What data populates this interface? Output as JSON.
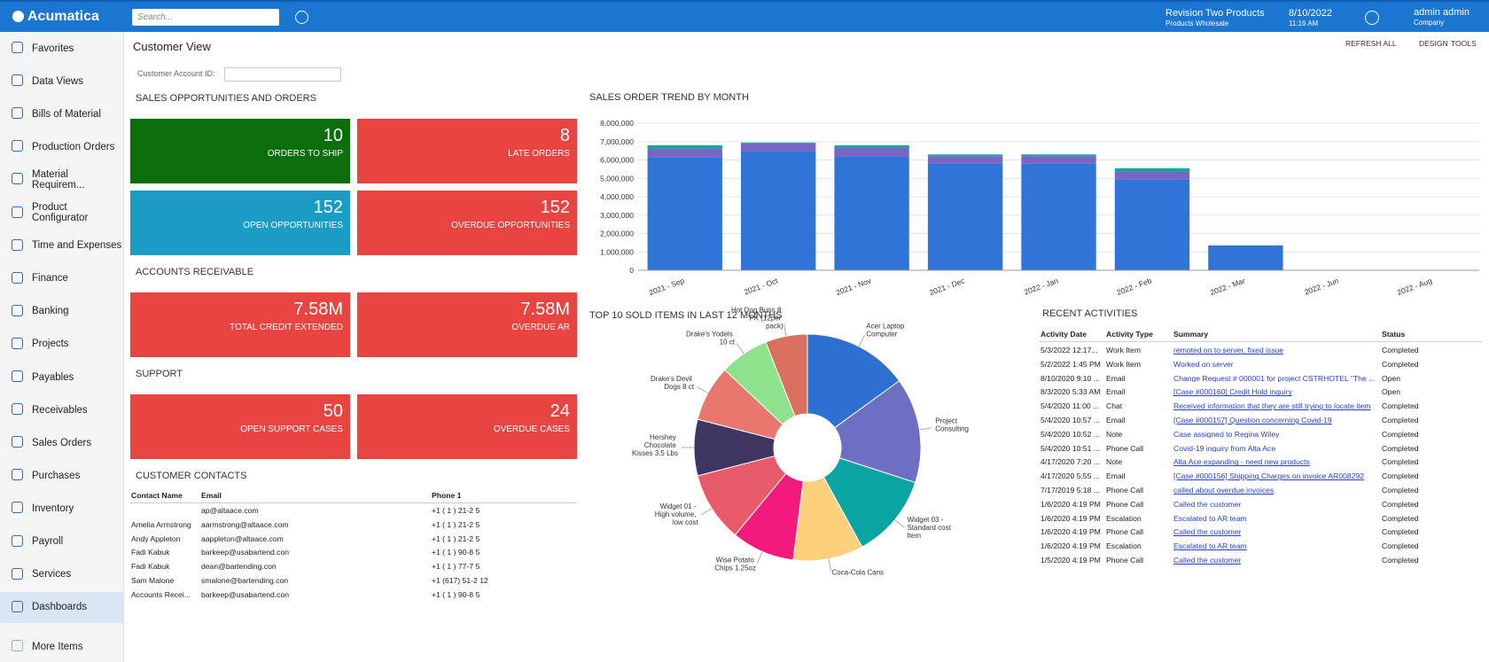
{
  "header": {
    "logo": "Acumatica",
    "search_placeholder": "Search...",
    "company": "Revision Two Products",
    "branch": "Products Wholesale",
    "date": "8/10/2022",
    "time": "11:16 AM",
    "user": "admin admin",
    "user_company": "Company"
  },
  "sidebar": {
    "items": [
      "Favorites",
      "Data Views",
      "Bills of Material",
      "Production Orders",
      "Material Requirem...",
      "Product Configurator",
      "Time and Expenses",
      "Finance",
      "Banking",
      "Projects",
      "Payables",
      "Receivables",
      "Sales Orders",
      "Purchases",
      "Inventory",
      "Payroll",
      "Services",
      "Dashboards"
    ],
    "active": 17,
    "more": "More Items"
  },
  "page": {
    "title": "Customer View",
    "actions": [
      "REFRESH ALL",
      "DESIGN",
      "TOOLS"
    ],
    "account_label": "Customer Account ID:"
  },
  "sections": [
    {
      "title": "SALES OPPORTUNITIES AND ORDERS",
      "tiles": [
        {
          "value": "10",
          "label": "ORDERS TO SHIP",
          "color": "#0b6e0b"
        },
        {
          "value": "8",
          "label": "LATE ORDERS",
          "color": "#e84442"
        },
        {
          "value": "152",
          "label": "OPEN OPPORTUNITIES",
          "color": "#1b9cc4"
        },
        {
          "value": "152",
          "label": "OVERDUE OPPORTUNITIES",
          "color": "#e84442"
        }
      ]
    },
    {
      "title": "ACCOUNTS RECEIVABLE",
      "tiles": [
        {
          "value": "7.58M",
          "label": "TOTAL CREDIT EXTENDED",
          "color": "#e84442"
        },
        {
          "value": "7.58M",
          "label": "OVERDUE AR",
          "color": "#e84442"
        }
      ]
    },
    {
      "title": "SUPPORT",
      "tiles": [
        {
          "value": "50",
          "label": "OPEN SUPPORT CASES",
          "color": "#e84442"
        },
        {
          "value": "24",
          "label": "OVERDUE CASES",
          "color": "#e84442"
        }
      ]
    }
  ],
  "contacts": {
    "title": "CUSTOMER CONTACTS",
    "columns": [
      "Contact Name",
      "Email",
      "Phone 1"
    ],
    "rows": [
      [
        null,
        "ap@altaace.com",
        "+1 ( 1 ) 21-2 5"
      ],
      [
        "Amelia Armstrong",
        "aarmstrong@altaace.com",
        "+1 ( 1 ) 21-2 5"
      ],
      [
        "Andy Appleton",
        "aappleton@altaace.com",
        "+1 ( 1 ) 21-2 5"
      ],
      [
        "Fadi Kabuk",
        "barkeep@usabartend.con",
        "+1 ( 1 ) 90-8 5"
      ],
      [
        "Fadi Kabuk",
        "dean@bartending.con",
        "+1 ( 1 ) 77-7 5"
      ],
      [
        "Sam Malone",
        "smalone@bartending.con",
        "+1 (617) 51-2 12"
      ],
      [
        "Accounts Recei...",
        "barkeep@usabartend.con",
        "+1 ( 1 ) 90-8 5"
      ]
    ]
  },
  "activities": {
    "title": "RECENT ACTIVITIES",
    "columns": [
      "Activity Date",
      "Activity Type",
      "Summary",
      "Status"
    ],
    "rows": [
      [
        "5/3/2022 12:17...",
        "Work Item",
        "remoted on to server, fixed issue",
        "Completed"
      ],
      [
        "5/2/2022 1:45 PM",
        "Work Item",
        "Worked on server",
        "Completed"
      ],
      [
        "8/10/2020 9:10 ...",
        "Email",
        "Change Request # 000001 for project CSTRHOTEL \"The ...",
        "Open"
      ],
      [
        "8/3/2020 5:33 AM",
        "Email",
        "[Case #000160] Credit Hold inquiry",
        "Open"
      ],
      [
        "5/4/2020 11:00 ...",
        "Chat",
        "Received information that they are still trying to locate item",
        "Completed"
      ],
      [
        "5/4/2020 10:57 ...",
        "Email",
        "[Case #000157] Question concerning Covid-19",
        "Completed"
      ],
      [
        "5/4/2020 10:52 ...",
        "Note",
        "Case assigned to Regina Wiley",
        "Completed"
      ],
      [
        "5/4/2020 10:51 ...",
        "Phone Call",
        "Covid-19 inquiry from Alta Ace",
        "Completed"
      ],
      [
        "4/17/2020 7:20 ...",
        "Note",
        "Alta Ace expanding - need new products",
        "Completed"
      ],
      [
        "4/17/2020 5:55 ...",
        "Email",
        "[Case #000156] Shipping Charges on invoice AR008292",
        "Completed"
      ],
      [
        "7/17/2019 5:18 ...",
        "Phone Call",
        "called about overdue invoices",
        "Completed"
      ],
      [
        "1/6/2020 4:19 PM",
        "Phone Call",
        "Called the customer",
        "Completed"
      ],
      [
        "1/6/2020 4:19 PM",
        "Escalation",
        "Escalated to AR team",
        "Completed"
      ],
      [
        "1/6/2020 4:19 PM",
        "Phone Call",
        "Called the customer",
        "Completed"
      ],
      [
        "1/6/2020 4:19 PM",
        "Escalation",
        "Escalated to AR team",
        "Completed"
      ],
      [
        "1/5/2020 4:19 PM",
        "Phone Call",
        "Called the customer",
        "Completed"
      ]
    ]
  },
  "chart_data": [
    {
      "type": "bar",
      "title": "SALES ORDER TREND BY MONTH",
      "stacked": true,
      "grid": true,
      "categories": [
        "2021 - Sep",
        "2021 - Oct",
        "2021 - Nov",
        "2021 - Dec",
        "2022 - Jan",
        "2022 - Feb",
        "2022 - Mar",
        "2022 - Jun",
        "2022 - Aug"
      ],
      "series": [
        {
          "color": "#2f74d6",
          "values": [
            6150000,
            6500000,
            6200000,
            5800000,
            5800000,
            4950000,
            1350000,
            0,
            0
          ]
        },
        {
          "color": "#7b64c6",
          "values": [
            450000,
            400000,
            450000,
            400000,
            400000,
            400000,
            0,
            0,
            0
          ]
        },
        {
          "color": "#16a6a0",
          "values": [
            200000,
            50000,
            150000,
            100000,
            100000,
            200000,
            0,
            0,
            0
          ]
        }
      ],
      "ylim": [
        0,
        8000000
      ],
      "yticks": [
        {
          "value": 0,
          "label": "0"
        },
        {
          "value": 1000000,
          "label": "1,000,000"
        },
        {
          "value": 2000000,
          "label": "2,000,000"
        },
        {
          "value": 3000000,
          "label": "3,000,000"
        },
        {
          "value": 4000000,
          "label": "4,000,000"
        },
        {
          "value": 5000000,
          "label": "5,000,000"
        },
        {
          "value": 6000000,
          "label": "6,000,000"
        },
        {
          "value": 7000000,
          "label": "7,000,000"
        },
        {
          "value": 8000000,
          "label": "8,000,000"
        }
      ]
    },
    {
      "type": "pie",
      "title": "TOP 10 SOLD ITEMS IN LAST 12 MONTHS",
      "donut": true,
      "categories": [
        "Acer Laptop Computer",
        "Project Consulting",
        "Widget 03 - Standard cost Item",
        "Coca-Cola Cans",
        "Wise Potato Chips 1.25oz",
        "Widget 01 - High volume, low cost",
        "Hershey Chocolate Kisses 3.5 Lbs",
        "Drake's Devil Dogs 8 ct",
        "Drake's Yodels 10 ct",
        "Hot Dog Buns 8 PK (12per pack)"
      ],
      "values": [
        15,
        15,
        12,
        10,
        9,
        10,
        8,
        8,
        7,
        6
      ],
      "colors": [
        "#2e6fd2",
        "#6d6fc2",
        "#0aa5a3",
        "#fdd17c",
        "#f21a7c",
        "#e85b6a",
        "#3e3560",
        "#e8776e",
        "#8fe28c",
        "#d9705f"
      ]
    }
  ]
}
